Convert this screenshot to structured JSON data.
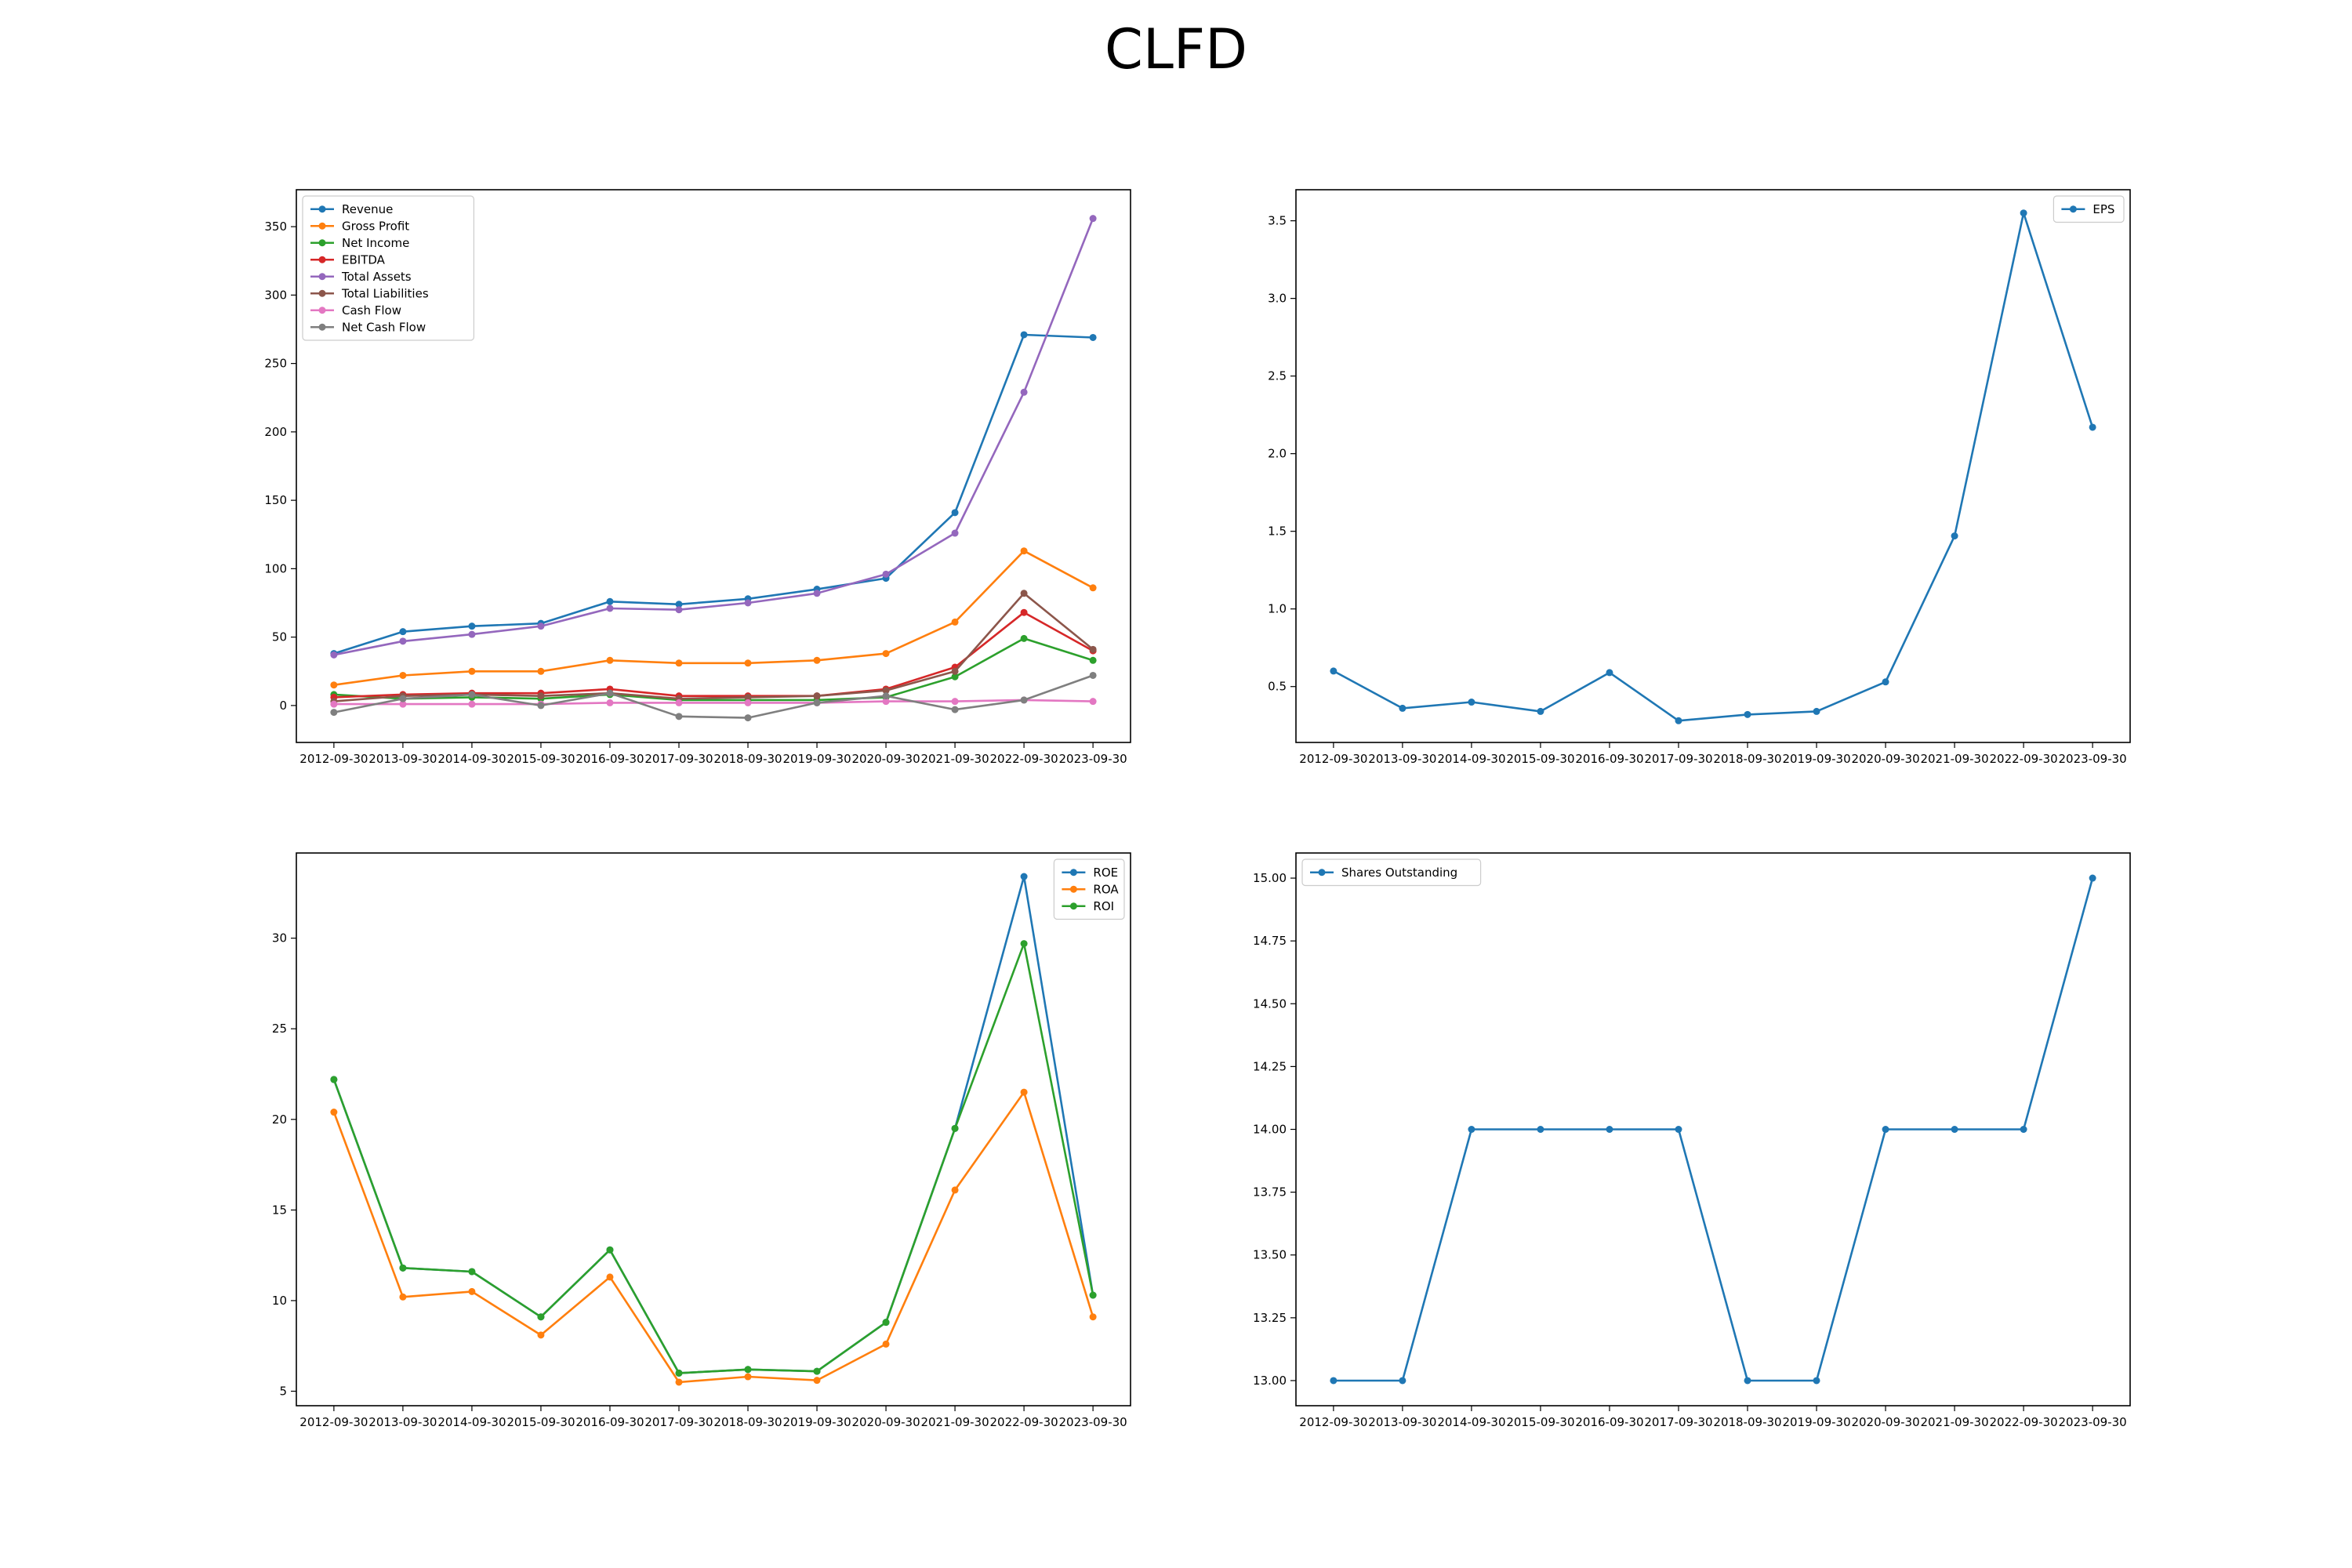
{
  "figure": {
    "title": "CLFD"
  },
  "chart_data": [
    {
      "type": "line",
      "x": [
        "2012-09-30",
        "2013-09-30",
        "2014-09-30",
        "2015-09-30",
        "2016-09-30",
        "2017-09-30",
        "2018-09-30",
        "2019-09-30",
        "2020-09-30",
        "2021-09-30",
        "2022-09-30",
        "2023-09-30"
      ],
      "ylim": [
        -27,
        377
      ],
      "yticks": [
        0,
        50,
        100,
        150,
        200,
        250,
        300,
        350
      ],
      "legend": "upper-left",
      "grid": false,
      "series": [
        {
          "name": "Revenue",
          "color": "#1f77b4",
          "values": [
            38,
            54,
            58,
            60,
            76,
            74,
            78,
            85,
            93,
            141,
            271,
            269
          ]
        },
        {
          "name": "Gross Profit",
          "color": "#ff7f0e",
          "values": [
            15,
            22,
            25,
            25,
            33,
            31,
            31,
            33,
            38,
            61,
            113,
            86
          ]
        },
        {
          "name": "Net Income",
          "color": "#2ca02c",
          "values": [
            8,
            5,
            6,
            5,
            8,
            4,
            4,
            4,
            6,
            21,
            49,
            33
          ]
        },
        {
          "name": "EBITDA",
          "color": "#d62728",
          "values": [
            6,
            8,
            9,
            9,
            12,
            7,
            7,
            7,
            12,
            28,
            68,
            40
          ]
        },
        {
          "name": "Total Assets",
          "color": "#9467bd",
          "values": [
            37,
            47,
            52,
            58,
            71,
            70,
            75,
            82,
            96,
            126,
            229,
            356
          ]
        },
        {
          "name": "Total Liabilities",
          "color": "#8c564b",
          "values": [
            3,
            7,
            8,
            7,
            9,
            5,
            6,
            7,
            11,
            25,
            82,
            41
          ]
        },
        {
          "name": "Cash Flow",
          "color": "#e377c2",
          "values": [
            1,
            1,
            1,
            1,
            2,
            2,
            2,
            2,
            3,
            3,
            4,
            3
          ]
        },
        {
          "name": "Net Cash Flow",
          "color": "#7f7f7f",
          "values": [
            -5,
            5,
            8,
            0,
            9,
            -8,
            -9,
            2,
            7,
            -3,
            4,
            22
          ]
        }
      ]
    },
    {
      "type": "line",
      "x": [
        "2012-09-30",
        "2013-09-30",
        "2014-09-30",
        "2015-09-30",
        "2016-09-30",
        "2017-09-30",
        "2018-09-30",
        "2019-09-30",
        "2020-09-30",
        "2021-09-30",
        "2022-09-30",
        "2023-09-30"
      ],
      "ylim": [
        0.14,
        3.7
      ],
      "yticks": [
        0.5,
        1.0,
        1.5,
        2.0,
        2.5,
        3.0,
        3.5
      ],
      "ytick_format": "1",
      "legend": "upper-right",
      "grid": false,
      "series": [
        {
          "name": "EPS",
          "color": "#1f77b4",
          "values": [
            0.6,
            0.36,
            0.4,
            0.34,
            0.59,
            0.28,
            0.32,
            0.34,
            0.53,
            1.47,
            3.55,
            2.17
          ]
        }
      ]
    },
    {
      "type": "line",
      "x": [
        "2012-09-30",
        "2013-09-30",
        "2014-09-30",
        "2015-09-30",
        "2016-09-30",
        "2017-09-30",
        "2018-09-30",
        "2019-09-30",
        "2020-09-30",
        "2021-09-30",
        "2022-09-30",
        "2023-09-30"
      ],
      "ylim": [
        4.2,
        34.7
      ],
      "yticks": [
        5,
        10,
        15,
        20,
        25,
        30
      ],
      "legend": "upper-right",
      "grid": false,
      "series": [
        {
          "name": "ROE",
          "color": "#1f77b4",
          "values": [
            22.2,
            11.8,
            11.6,
            9.1,
            12.8,
            6.0,
            6.2,
            6.1,
            8.8,
            19.5,
            33.4,
            10.3
          ]
        },
        {
          "name": "ROA",
          "color": "#ff7f0e",
          "values": [
            20.4,
            10.2,
            10.5,
            8.1,
            11.3,
            5.5,
            5.8,
            5.6,
            7.6,
            16.1,
            21.5,
            9.1
          ]
        },
        {
          "name": "ROI",
          "color": "#2ca02c",
          "values": [
            22.2,
            11.8,
            11.6,
            9.1,
            12.8,
            6.0,
            6.2,
            6.1,
            8.8,
            19.5,
            29.7,
            10.3
          ]
        }
      ]
    },
    {
      "type": "line",
      "x": [
        "2012-09-30",
        "2013-09-30",
        "2014-09-30",
        "2015-09-30",
        "2016-09-30",
        "2017-09-30",
        "2018-09-30",
        "2019-09-30",
        "2020-09-30",
        "2021-09-30",
        "2022-09-30",
        "2023-09-30"
      ],
      "ylim": [
        12.9,
        15.1
      ],
      "yticks": [
        13.0,
        13.25,
        13.5,
        13.75,
        14.0,
        14.25,
        14.5,
        14.75,
        15.0
      ],
      "ytick_format": "2",
      "legend": "upper-left",
      "grid": false,
      "series": [
        {
          "name": "Shares Outstanding",
          "color": "#1f77b4",
          "values": [
            13,
            13,
            14,
            14,
            14,
            14,
            13,
            13,
            14,
            14,
            14,
            15
          ]
        }
      ]
    }
  ]
}
